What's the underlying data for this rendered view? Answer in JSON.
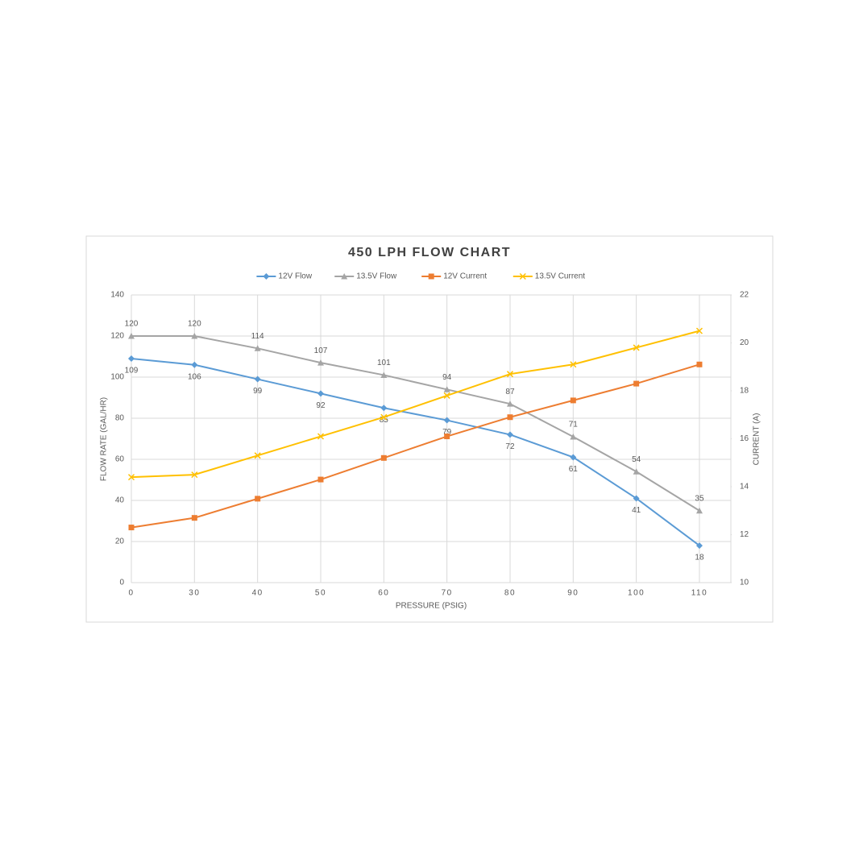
{
  "chart_data": {
    "type": "line",
    "title": "450 LPH FLOW CHART",
    "x_label": "PRESSURE (PSIG)",
    "y_label": "FLOW RATE (GAL/HR)",
    "y2_label": "CURRENT (A)",
    "categories": [
      "0",
      "30",
      "40",
      "50",
      "60",
      "70",
      "80",
      "90",
      "100",
      "110"
    ],
    "series": [
      {
        "name": "12V Flow",
        "color": "#5b9bd5",
        "marker": "diamond",
        "label_position": "below",
        "values": [
          109,
          106,
          99,
          92,
          85,
          79,
          72,
          61,
          41,
          18
        ]
      },
      {
        "name": "13.5V Flow",
        "color": "#a5a5a5",
        "marker": "triangle",
        "label_position": "above",
        "values": [
          120,
          120,
          114,
          107,
          101,
          94,
          87,
          71,
          54,
          35
        ]
      },
      {
        "name": "12V Current",
        "color": "#ed7d31",
        "marker": "square",
        "axis": "y2",
        "values": [
          12.3,
          12.7,
          13.5,
          14.3,
          15.2,
          16.1,
          16.9,
          17.6,
          18.3,
          19.1
        ]
      },
      {
        "name": "13.5V Current",
        "color": "#ffc000",
        "marker": "x",
        "axis": "y2",
        "values": [
          14.4,
          14.5,
          15.3,
          16.1,
          16.9,
          17.8,
          18.7,
          19.1,
          19.8,
          20.5
        ]
      }
    ],
    "ylim": [
      0,
      140
    ],
    "yticks": [
      0,
      20,
      40,
      60,
      80,
      100,
      120,
      140
    ],
    "y2lim": [
      10,
      22
    ],
    "y2ticks": [
      10,
      12,
      14,
      16,
      18,
      20,
      22
    ],
    "grid": true,
    "legend": "top"
  }
}
